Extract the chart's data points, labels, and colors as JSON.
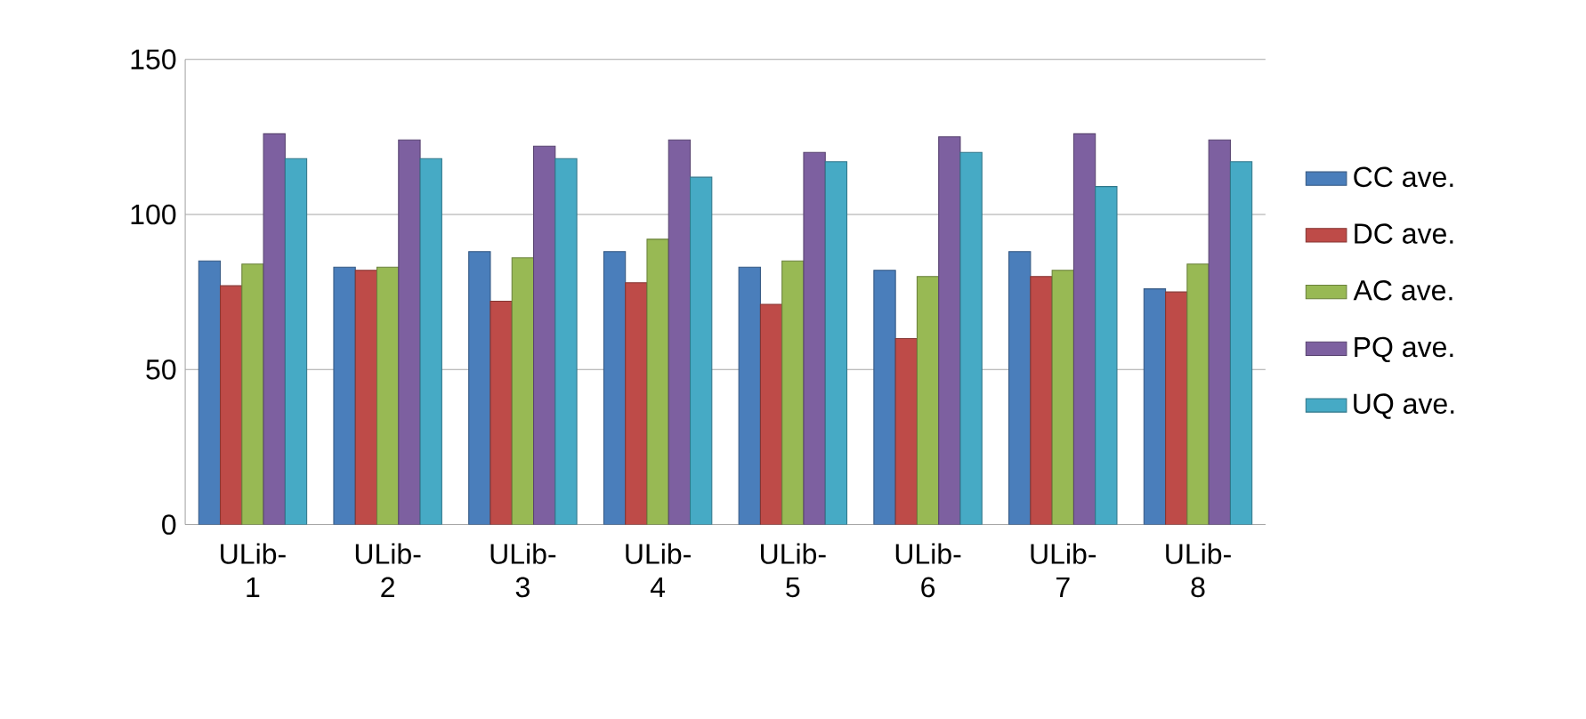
{
  "chart_data": {
    "type": "bar",
    "categories": [
      "ULib-1",
      "ULib-2",
      "ULib-3",
      "ULib-4",
      "ULib-5",
      "ULib-6",
      "ULib-7",
      "ULib-8"
    ],
    "series": [
      {
        "name": "CC ave.",
        "color": "#4a7ebb",
        "values": [
          85,
          83,
          88,
          88,
          83,
          82,
          88,
          76
        ]
      },
      {
        "name": "DC ave.",
        "color": "#be4b48",
        "values": [
          77,
          82,
          72,
          78,
          71,
          60,
          80,
          75
        ]
      },
      {
        "name": "AC ave.",
        "color": "#98b954",
        "values": [
          84,
          83,
          86,
          92,
          85,
          80,
          82,
          84
        ]
      },
      {
        "name": "PQ ave.",
        "color": "#7d60a0",
        "values": [
          126,
          124,
          122,
          124,
          120,
          125,
          126,
          124
        ]
      },
      {
        "name": "UQ ave.",
        "color": "#46aac5",
        "values": [
          118,
          118,
          118,
          112,
          117,
          120,
          109,
          117
        ]
      }
    ],
    "ylim": [
      0,
      150
    ],
    "yticks": [
      0,
      50,
      100,
      150
    ],
    "grid": "y",
    "legend": "right"
  }
}
